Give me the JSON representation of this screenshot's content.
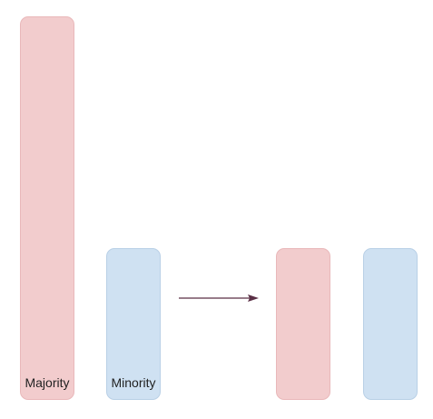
{
  "diagram": {
    "before": {
      "majority": {
        "label": "Majority",
        "fill": "#f2cccd",
        "stroke": "#e9b8ba"
      },
      "minority": {
        "label": "Minority",
        "fill": "#cfe1f2",
        "stroke": "#b9d0e6"
      }
    },
    "after": {
      "majority": {
        "fill": "#f2cccd",
        "stroke": "#e9b8ba"
      },
      "minority": {
        "fill": "#cfe1f2",
        "stroke": "#b9d0e6"
      }
    },
    "arrow": {
      "color": "#5a2f45"
    }
  }
}
